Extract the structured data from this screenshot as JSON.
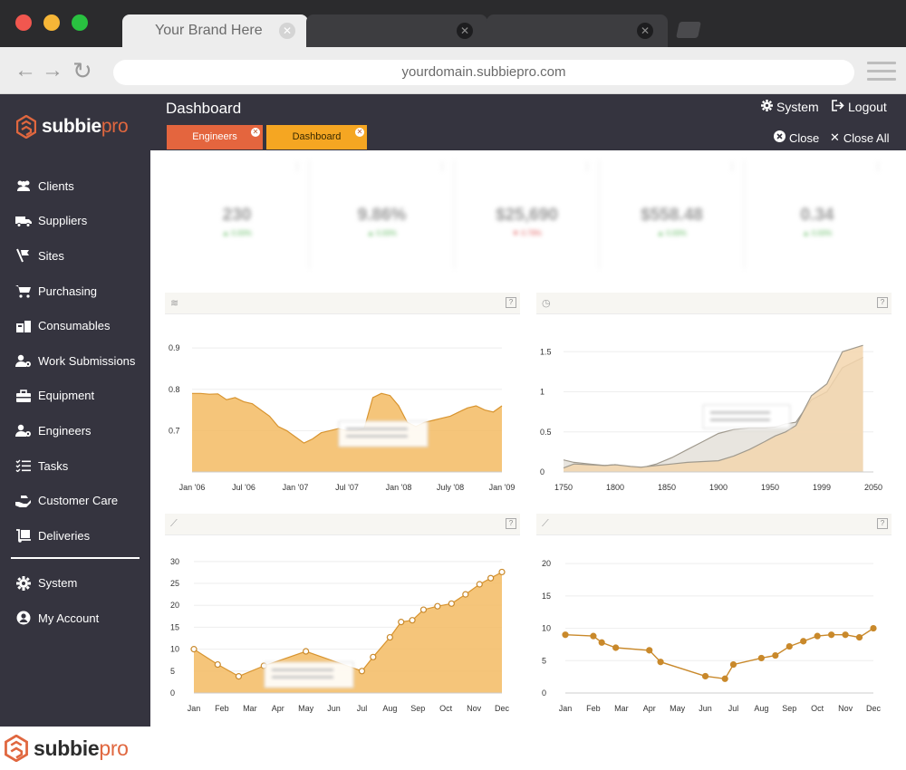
{
  "browser": {
    "active_tab_title": "Your Brand Here",
    "url": "yourdomain.subbiepro.com"
  },
  "brand": {
    "name_main": "subbie",
    "name_accent": "pro",
    "accent_color": "#e0673f"
  },
  "sidebar": {
    "items": [
      {
        "label": "Clients",
        "icon": "users-icon"
      },
      {
        "label": "Suppliers",
        "icon": "truck-icon"
      },
      {
        "label": "Sites",
        "icon": "map-sign-icon"
      },
      {
        "label": "Purchasing",
        "icon": "cart-icon"
      },
      {
        "label": "Consumables",
        "icon": "boxes-icon"
      },
      {
        "label": "Work Submissions",
        "icon": "user-cog-icon"
      },
      {
        "label": "Equipment",
        "icon": "toolbox-icon"
      },
      {
        "label": "Engineers",
        "icon": "user-gear-icon"
      },
      {
        "label": "Tasks",
        "icon": "list-check-icon"
      },
      {
        "label": "Customer Care",
        "icon": "hand-care-icon"
      },
      {
        "label": "Deliveries",
        "icon": "dolly-icon"
      }
    ],
    "footer_items": [
      {
        "label": "System",
        "icon": "gear-icon"
      },
      {
        "label": "My Account",
        "icon": "user-circle-icon"
      }
    ]
  },
  "header": {
    "title": "Dashboard",
    "system_label": "System",
    "logout_label": "Logout",
    "close_label": "Close",
    "close_all_label": "Close All",
    "tabs": [
      {
        "label": "Engineers",
        "color": "#e4653e"
      },
      {
        "label": "Dashboard",
        "color": "#f5a622"
      }
    ]
  },
  "kpis": [
    {
      "value": "230",
      "delta": "▲ 0.00%",
      "trend": "up"
    },
    {
      "value": "9.86%",
      "delta": "▲ 0.00%",
      "trend": "up"
    },
    {
      "value": "$25,690",
      "delta": "▼ 0.79%",
      "trend": "down"
    },
    {
      "value": "$558.48",
      "delta": "▲ 0.00%",
      "trend": "up"
    },
    {
      "value": "0.34",
      "delta": "▲ 0.00%",
      "trend": "up"
    }
  ],
  "chart_data": [
    {
      "type": "area",
      "x_labels": [
        "Jan '06",
        "Jul '06",
        "Jan '07",
        "Jul '07",
        "Jan '08",
        "July '08",
        "Jan '09"
      ],
      "y_ticks": [
        0.7,
        0.8,
        0.9
      ],
      "ylim": [
        0.6,
        0.92
      ],
      "x": [
        0,
        1,
        2,
        3,
        4,
        5,
        6,
        7,
        8,
        9,
        10,
        11,
        12,
        13,
        14,
        15,
        16,
        17,
        18,
        19,
        20,
        21,
        22,
        23,
        24,
        25,
        26,
        27,
        28,
        29,
        30,
        31,
        32,
        33,
        34,
        35,
        36
      ],
      "values": [
        0.79,
        0.79,
        0.788,
        0.789,
        0.775,
        0.78,
        0.77,
        0.765,
        0.75,
        0.735,
        0.71,
        0.7,
        0.685,
        0.67,
        0.68,
        0.695,
        0.7,
        0.705,
        0.7,
        0.7,
        0.705,
        0.78,
        0.79,
        0.785,
        0.76,
        0.72,
        0.71,
        0.72,
        0.725,
        0.73,
        0.735,
        0.745,
        0.755,
        0.76,
        0.75,
        0.745,
        0.76
      ],
      "color": "#f3bb63",
      "point_marker_index": 14
    },
    {
      "type": "area",
      "x_labels": [
        "1750",
        "1800",
        "1850",
        "1900",
        "1950",
        "1999",
        "2050"
      ],
      "y_ticks": [
        0,
        0.5,
        1,
        1.5
      ],
      "ylim": [
        0,
        1.65
      ],
      "series": [
        {
          "color": "#e0dcd4",
          "x": [
            1750,
            1760,
            1775,
            1790,
            1800,
            1815,
            1825,
            1840,
            1855,
            1870,
            1885,
            1900,
            1915,
            1930,
            1945,
            1955,
            1965,
            1975,
            1990,
            2005,
            2020,
            2040
          ],
          "values": [
            0.15,
            0.12,
            0.1,
            0.08,
            0.09,
            0.06,
            0.05,
            0.1,
            0.18,
            0.28,
            0.38,
            0.48,
            0.53,
            0.55,
            0.55,
            0.56,
            0.6,
            0.62,
            0.9,
            1.0,
            1.3,
            1.43
          ]
        },
        {
          "color": "#f3d6ae",
          "x": [
            1750,
            1760,
            1775,
            1790,
            1800,
            1815,
            1825,
            1840,
            1855,
            1870,
            1885,
            1900,
            1915,
            1930,
            1945,
            1955,
            1965,
            1975,
            1990,
            2005,
            2020,
            2040
          ],
          "values": [
            0.05,
            0.1,
            0.09,
            0.08,
            0.09,
            0.07,
            0.06,
            0.08,
            0.1,
            0.12,
            0.13,
            0.14,
            0.2,
            0.28,
            0.38,
            0.45,
            0.5,
            0.58,
            0.95,
            1.1,
            1.5,
            1.58
          ]
        }
      ]
    },
    {
      "type": "area",
      "x_labels": [
        "Jan",
        "Feb",
        "Mar",
        "Apr",
        "May",
        "Jun",
        "Jul",
        "Aug",
        "Sep",
        "Oct",
        "Nov",
        "Dec"
      ],
      "y_ticks": [
        0,
        5,
        10,
        15,
        20,
        25,
        30
      ],
      "ylim": [
        0,
        31
      ],
      "x": [
        0,
        0.85,
        1.6,
        2.5,
        4,
        6,
        6.4,
        7.0,
        7.4,
        7.8,
        8.2,
        8.7,
        9.2,
        9.7,
        10.2,
        10.6,
        11
      ],
      "values": [
        10,
        6.5,
        3.8,
        6.2,
        9.5,
        5,
        8.2,
        12.7,
        16.2,
        16.6,
        19,
        19.8,
        20.4,
        22.5,
        24.8,
        26.2,
        27.6
      ],
      "color": "#f3bb63"
    },
    {
      "type": "line",
      "x_labels": [
        "Jan",
        "Feb",
        "Mar",
        "Apr",
        "May",
        "Jun",
        "Jul",
        "Aug",
        "Sep",
        "Oct",
        "Nov",
        "Dec"
      ],
      "y_ticks": [
        0,
        5,
        10,
        15,
        20
      ],
      "ylim": [
        0,
        21
      ],
      "x": [
        0,
        1,
        1.3,
        1.8,
        3,
        3.4,
        5,
        5.7,
        6,
        7,
        7.5,
        8,
        8.5,
        9,
        9.5,
        10,
        10.5,
        11
      ],
      "values": [
        9,
        8.8,
        7.8,
        7,
        6.6,
        4.8,
        2.6,
        2.2,
        4.4,
        5.4,
        5.8,
        7.2,
        8,
        8.8,
        9,
        9,
        8.6,
        10
      ],
      "color": "#c9892b"
    }
  ]
}
